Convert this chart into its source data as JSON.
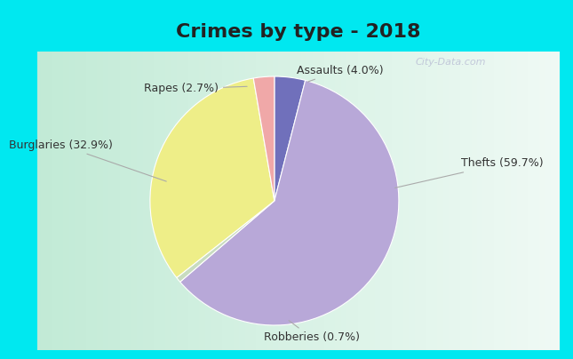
{
  "title": "Crimes by type - 2018",
  "slices": [
    {
      "label": "Assaults (4.0%)",
      "value": 4.0,
      "color": "#7070bb"
    },
    {
      "label": "Thefts (59.7%)",
      "value": 59.7,
      "color": "#b8a8d8"
    },
    {
      "label": "Robberies (0.7%)",
      "value": 0.7,
      "color": "#c8dcc0"
    },
    {
      "label": "Burglaries (32.9%)",
      "value": 32.9,
      "color": "#eeee88"
    },
    {
      "label": "Rapes (2.7%)",
      "value": 2.7,
      "color": "#f0a8a8"
    }
  ],
  "bg_cyan": "#00e8f0",
  "title_fontsize": 16,
  "label_fontsize": 9,
  "watermark": "City-Data.com",
  "title_color": "#222222",
  "label_color": "#333333",
  "line_color": "#aaaaaa"
}
